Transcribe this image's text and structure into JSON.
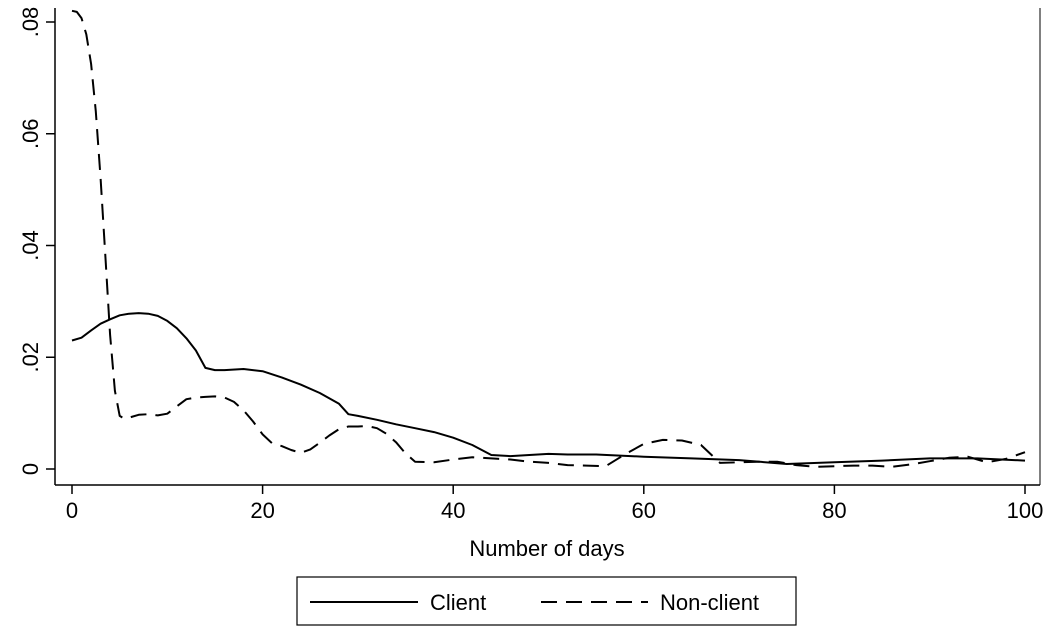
{
  "chart_data": {
    "type": "line",
    "xlabel": "Number of days",
    "ylabel": "",
    "xlim": [
      0,
      100
    ],
    "ylim": [
      0,
      0.082
    ],
    "x_ticks": [
      0,
      20,
      40,
      60,
      80,
      100
    ],
    "x_tick_labels": [
      "0",
      "20",
      "40",
      "60",
      "80",
      "100"
    ],
    "y_ticks": [
      0,
      0.02,
      0.04,
      0.06,
      0.08
    ],
    "y_tick_labels": [
      "0",
      ".02",
      ".04",
      ".06",
      ".08"
    ],
    "grid": false,
    "legend_position": "bottom",
    "series": [
      {
        "name": "Client",
        "style": "solid",
        "color": "#000000",
        "x": [
          0,
          1,
          2,
          3,
          4,
          5,
          6,
          7,
          8,
          9,
          10,
          11,
          12,
          13,
          14,
          15,
          16,
          18,
          20,
          22,
          24,
          26,
          28,
          29,
          30,
          32,
          34,
          36,
          38,
          40,
          42,
          44,
          46,
          48,
          50,
          52,
          55,
          60,
          65,
          70,
          75,
          80,
          85,
          90,
          95,
          100
        ],
        "y": [
          0.023,
          0.0235,
          0.0248,
          0.026,
          0.0268,
          0.0275,
          0.0278,
          0.0279,
          0.0278,
          0.0274,
          0.0265,
          0.0252,
          0.0234,
          0.0212,
          0.0181,
          0.0177,
          0.0177,
          0.0179,
          0.0175,
          0.0164,
          0.0151,
          0.0136,
          0.0117,
          0.0098,
          0.0095,
          0.0088,
          0.008,
          0.0073,
          0.0066,
          0.0056,
          0.0043,
          0.0025,
          0.0023,
          0.0025,
          0.0027,
          0.0026,
          0.0026,
          0.0022,
          0.0019,
          0.0016,
          0.0009,
          0.0012,
          0.0015,
          0.0019,
          0.0019,
          0.0015
        ]
      },
      {
        "name": "Non-client",
        "style": "dashed",
        "color": "#000000",
        "x": [
          0,
          0.5,
          1,
          1.5,
          2,
          2.5,
          3,
          3.5,
          4,
          4.5,
          5,
          5.5,
          6,
          7,
          8,
          9,
          10,
          11,
          12,
          13,
          14,
          15,
          16,
          17,
          18,
          19,
          20,
          21,
          22,
          23,
          24,
          25,
          26,
          27,
          28,
          29,
          30,
          31,
          32,
          33,
          34,
          35,
          36,
          38,
          40,
          42,
          44,
          46,
          48,
          50,
          52,
          54,
          56,
          58,
          60,
          62,
          64,
          66,
          68,
          70,
          72,
          74,
          76,
          78,
          80,
          82,
          84,
          86,
          88,
          90,
          92,
          94,
          96,
          98,
          100
        ],
        "y": [
          0.082,
          0.0818,
          0.0807,
          0.0778,
          0.0725,
          0.064,
          0.052,
          0.038,
          0.024,
          0.014,
          0.0095,
          0.009,
          0.0092,
          0.0097,
          0.0098,
          0.0096,
          0.0099,
          0.0112,
          0.0125,
          0.0128,
          0.0129,
          0.013,
          0.0128,
          0.012,
          0.0105,
          0.0085,
          0.0062,
          0.0046,
          0.0041,
          0.0034,
          0.0029,
          0.0035,
          0.0047,
          0.006,
          0.0071,
          0.0076,
          0.0076,
          0.0077,
          0.0073,
          0.0063,
          0.0048,
          0.0028,
          0.0013,
          0.0012,
          0.0017,
          0.0021,
          0.0019,
          0.0017,
          0.0013,
          0.0011,
          0.0007,
          0.0006,
          0.0005,
          0.0026,
          0.0045,
          0.0052,
          0.0051,
          0.0043,
          0.0011,
          0.0012,
          0.0013,
          0.0013,
          0.0007,
          0.0004,
          0.0005,
          0.0006,
          0.0006,
          0.0004,
          0.0008,
          0.0014,
          0.002,
          0.0022,
          0.0012,
          0.0018,
          0.003
        ]
      }
    ]
  }
}
